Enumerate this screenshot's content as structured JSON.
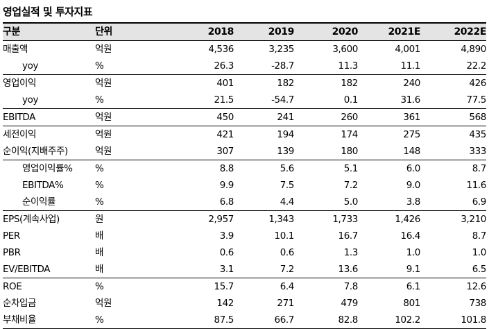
{
  "title": "영업실적 및 투자지표",
  "header": {
    "label": "구분",
    "unit": "단위",
    "years": [
      "2018",
      "2019",
      "2020",
      "2021E",
      "2022E"
    ]
  },
  "rows": [
    {
      "label": "매출액",
      "unit": "억원",
      "values": [
        "4,536",
        "3,235",
        "3,600",
        "4,001",
        "4,890"
      ],
      "indent": false,
      "group_end": false
    },
    {
      "label": "yoy",
      "unit": "%",
      "values": [
        "26.3",
        "-28.7",
        "11.3",
        "11.1",
        "22.2"
      ],
      "indent": true,
      "group_end": true
    },
    {
      "label": "영업이익",
      "unit": "억원",
      "values": [
        "401",
        "182",
        "182",
        "240",
        "426"
      ],
      "indent": false,
      "group_end": false
    },
    {
      "label": "yoy",
      "unit": "%",
      "values": [
        "21.5",
        "-54.7",
        "0.1",
        "31.6",
        "77.5"
      ],
      "indent": true,
      "group_end": true
    },
    {
      "label": "EBITDA",
      "unit": "억원",
      "values": [
        "450",
        "241",
        "260",
        "361",
        "568"
      ],
      "indent": false,
      "group_end": true
    },
    {
      "label": "세전이익",
      "unit": "억원",
      "values": [
        "421",
        "194",
        "174",
        "275",
        "435"
      ],
      "indent": false,
      "group_end": false
    },
    {
      "label": "순이익(지배주주)",
      "unit": "억원",
      "values": [
        "307",
        "139",
        "180",
        "148",
        "333"
      ],
      "indent": false,
      "group_end": true
    },
    {
      "label": "영업이익률%",
      "unit": "%",
      "values": [
        "8.8",
        "5.6",
        "5.1",
        "6.0",
        "8.7"
      ],
      "indent": true,
      "group_end": false
    },
    {
      "label": "EBITDA%",
      "unit": "%",
      "values": [
        "9.9",
        "7.5",
        "7.2",
        "9.0",
        "11.6"
      ],
      "indent": true,
      "group_end": false
    },
    {
      "label": "순이익률",
      "unit": "%",
      "values": [
        "6.8",
        "4.4",
        "5.0",
        "3.8",
        "6.9"
      ],
      "indent": true,
      "group_end": true
    },
    {
      "label": "EPS(계속사업)",
      "unit": "원",
      "values": [
        "2,957",
        "1,343",
        "1,733",
        "1,426",
        "3,210"
      ],
      "indent": false,
      "group_end": false
    },
    {
      "label": "PER",
      "unit": "배",
      "values": [
        "3.9",
        "10.1",
        "16.7",
        "16.4",
        "8.7"
      ],
      "indent": false,
      "group_end": false
    },
    {
      "label": "PBR",
      "unit": "배",
      "values": [
        "0.6",
        "0.6",
        "1.3",
        "1.0",
        "1.0"
      ],
      "indent": false,
      "group_end": false
    },
    {
      "label": "EV/EBITDA",
      "unit": "배",
      "values": [
        "3.1",
        "7.2",
        "13.6",
        "9.1",
        "6.5"
      ],
      "indent": false,
      "group_end": true
    },
    {
      "label": "ROE",
      "unit": "%",
      "values": [
        "15.7",
        "6.4",
        "7.8",
        "6.1",
        "12.6"
      ],
      "indent": false,
      "group_end": false
    },
    {
      "label": "순차입금",
      "unit": "억원",
      "values": [
        "142",
        "271",
        "479",
        "801",
        "738"
      ],
      "indent": false,
      "group_end": false
    },
    {
      "label": "부채비율",
      "unit": "%",
      "values": [
        "87.5",
        "66.7",
        "82.8",
        "102.2",
        "101.8"
      ],
      "indent": false,
      "group_end": false
    }
  ]
}
